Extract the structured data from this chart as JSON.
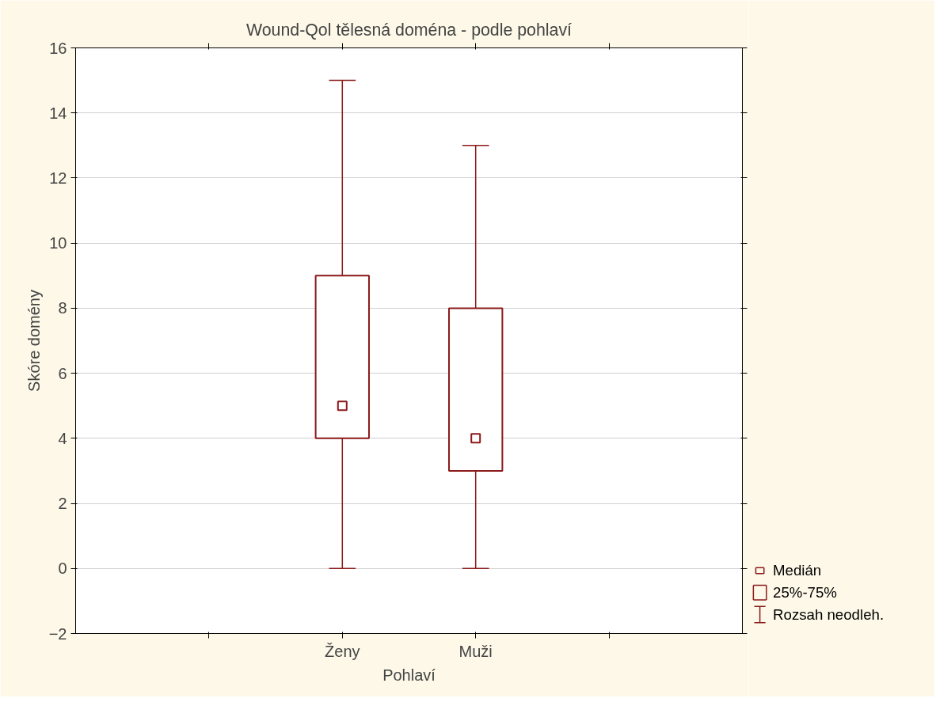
{
  "chart_data": {
    "type": "box",
    "title": "Wound-Qol tělesná doména - podle pohlaví",
    "xlabel": "Pohlaví",
    "ylabel": "Skóre domény",
    "categories": [
      null,
      "Ženy",
      "Muži",
      null
    ],
    "boxes": [
      null,
      {
        "low": 0,
        "q1": 4,
        "median": 5,
        "q3": 9,
        "high": 15
      },
      {
        "low": 0,
        "q1": 3,
        "median": 4,
        "q3": 8,
        "high": 13
      },
      null
    ],
    "color": "#8b1a1a",
    "ylim": [
      -2,
      16
    ],
    "yticks": [
      -2,
      0,
      2,
      4,
      6,
      8,
      10,
      12,
      14,
      16
    ],
    "grid": "y",
    "annotations": [
      "Medián",
      "25%-75%",
      "Rozsah neodleh."
    ]
  }
}
